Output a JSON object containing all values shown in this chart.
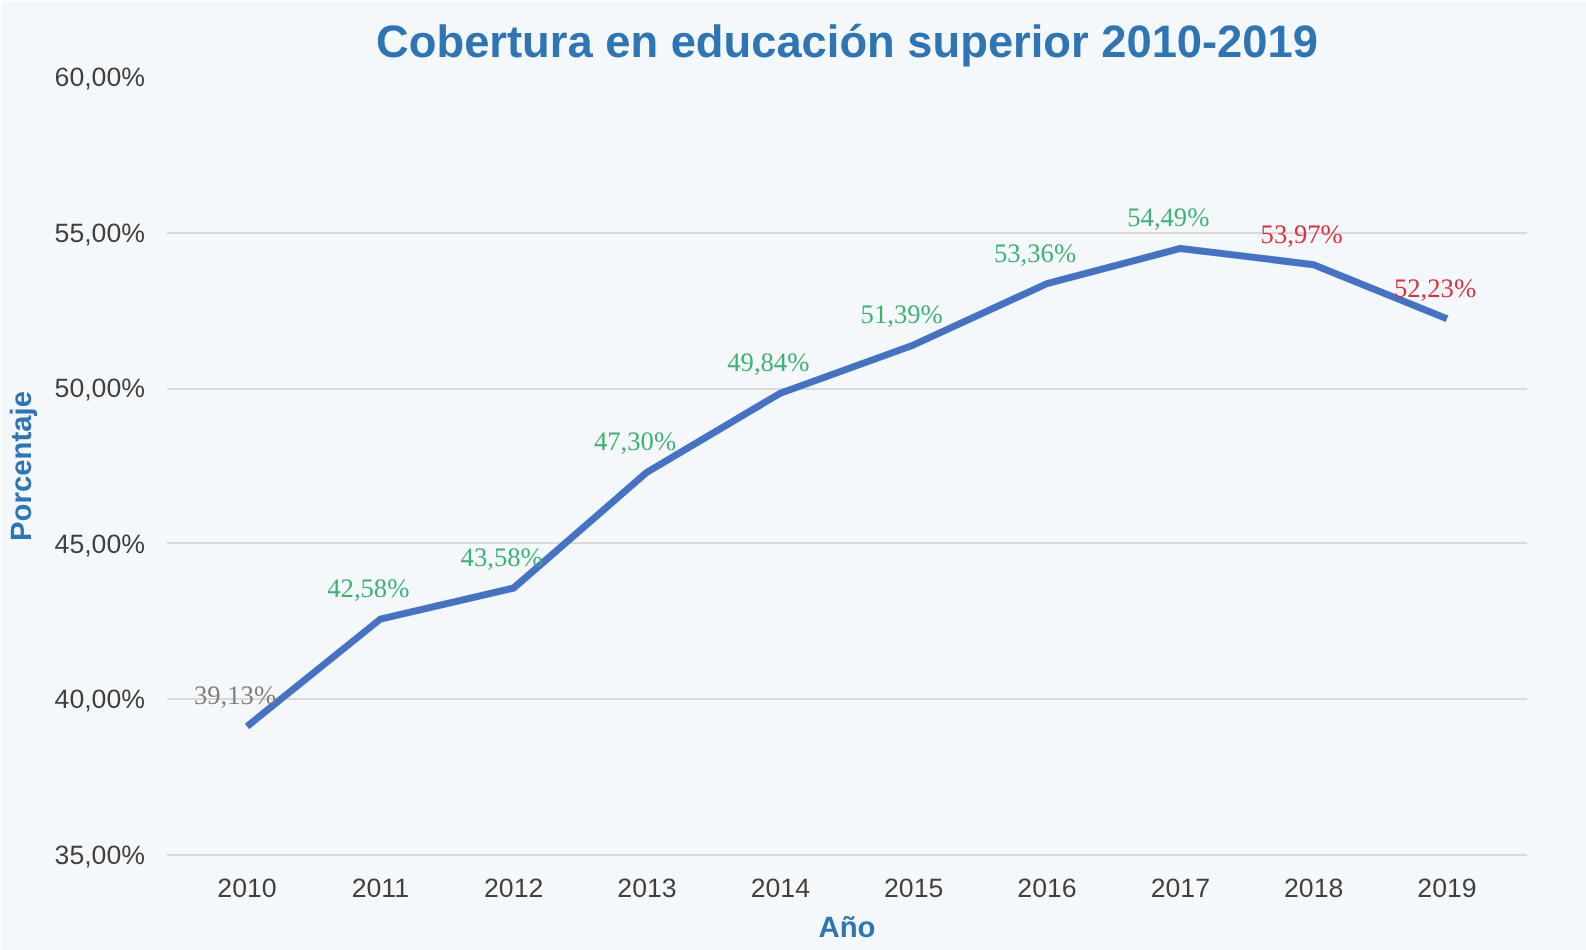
{
  "chart_data": {
    "type": "line",
    "title": "Cobertura en educación superior 2010-2019",
    "xlabel": "Año",
    "ylabel": "Porcentaje",
    "categories": [
      "2010",
      "2011",
      "2012",
      "2013",
      "2014",
      "2015",
      "2016",
      "2017",
      "2018",
      "2019"
    ],
    "series": [
      {
        "color": "#4472c4",
        "values": [
          39.13,
          42.58,
          43.58,
          47.3,
          49.84,
          51.39,
          53.36,
          54.49,
          53.97,
          52.23
        ],
        "value_labels": [
          "39,13%",
          "42,58%",
          "43,58%",
          "47,30%",
          "49,84%",
          "51,39%",
          "53,36%",
          "54,49%",
          "53,97%",
          "52,23%"
        ],
        "colors": [
          "#7f7f7f",
          "#3cb371",
          "#3cb371",
          "#3cb371",
          "#3cb371",
          "#3cb371",
          "#3cb371",
          "#3cb371",
          "#e0303a",
          "#e0303a"
        ]
      }
    ],
    "ylim": [
      35,
      60
    ],
    "yticks": [
      {
        "value": 35,
        "label": "35,00%"
      },
      {
        "value": 40,
        "label": "40,00%"
      },
      {
        "value": 45,
        "label": "45,00%"
      },
      {
        "value": 50,
        "label": "50,00%"
      },
      {
        "value": 55,
        "label": "55,00%"
      },
      {
        "value": 60,
        "label": "60,00%"
      }
    ],
    "grid": "y",
    "marker": "none",
    "line_style": "solid"
  }
}
